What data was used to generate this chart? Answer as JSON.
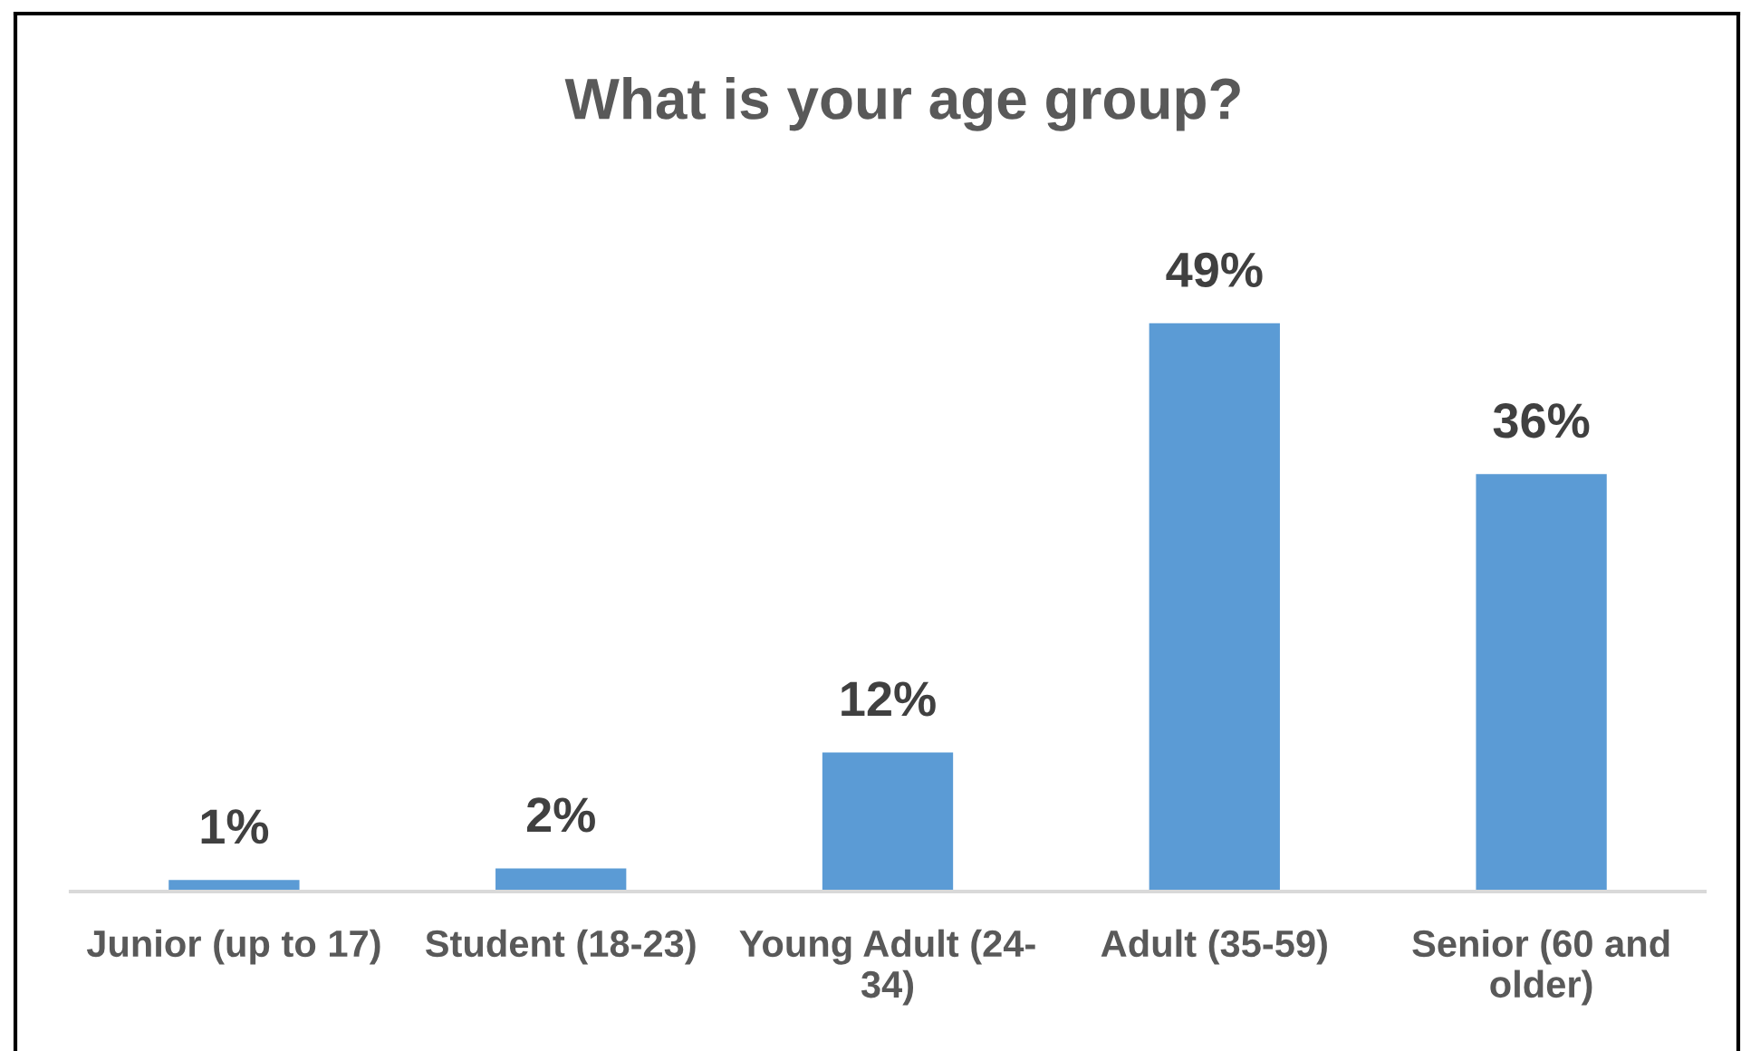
{
  "chart_data": {
    "type": "bar",
    "title": "What is your age group?",
    "categories": [
      "Junior (up to 17)",
      "Student (18-23)",
      "Young Adult (24-34)",
      "Adult (35-59)",
      "Senior (60 and older)"
    ],
    "values": [
      1,
      2,
      12,
      49,
      36
    ],
    "value_labels": [
      "1%",
      "2%",
      "12%",
      "49%",
      "36%"
    ],
    "color": "#5b9bd5"
  }
}
